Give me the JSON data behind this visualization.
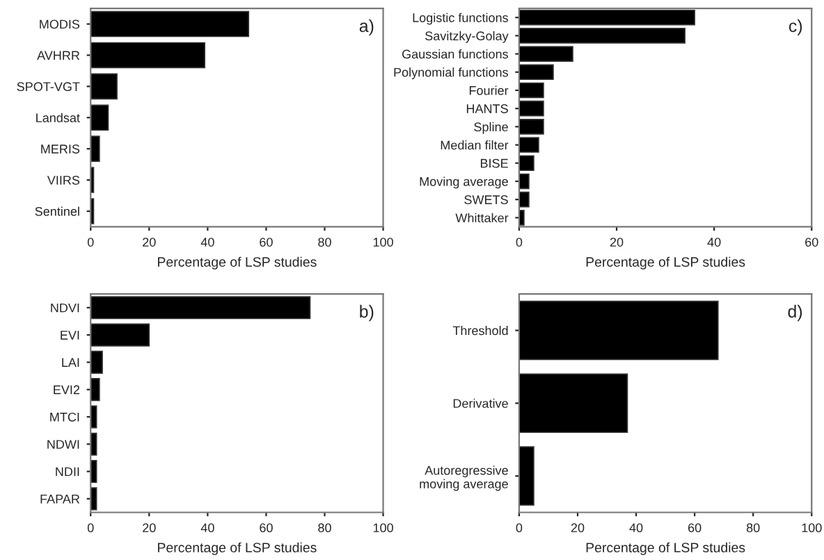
{
  "chart_data": [
    {
      "type": "bar",
      "orientation": "horizontal",
      "categories": [
        "MODIS",
        "AVHRR",
        "SPOT-VGT",
        "Landsat",
        "MERIS",
        "VIIRS",
        "Sentinel"
      ],
      "values": [
        54,
        39,
        9,
        6,
        3,
        1,
        1
      ],
      "color": "#000000",
      "xlabel": "Percentage of LSP studies",
      "xlim": [
        0,
        100
      ],
      "xticks": [
        0,
        20,
        40,
        60,
        80,
        100
      ],
      "annotations": [
        "a)"
      ],
      "grid": false,
      "legend": false
    },
    {
      "type": "bar",
      "orientation": "horizontal",
      "categories": [
        "Logistic functions",
        "Savitzky-Golay",
        "Gaussian functions",
        "Polynomial functions",
        "Fourier",
        "HANTS",
        "Spline",
        "Median filter",
        "BISE",
        "Moving average",
        "SWETS",
        "Whittaker"
      ],
      "values": [
        36,
        34,
        11,
        7,
        5,
        5,
        5,
        4,
        3,
        2,
        2,
        1
      ],
      "color": "#000000",
      "xlabel": "Percentage of LSP studies",
      "xlim": [
        0,
        60
      ],
      "xticks": [
        0,
        20,
        40,
        60
      ],
      "annotations": [
        "c)"
      ],
      "grid": false,
      "legend": false
    },
    {
      "type": "bar",
      "orientation": "horizontal",
      "categories": [
        "NDVI",
        "EVI",
        "LAI",
        "EVI2",
        "MTCI",
        "NDWI",
        "NDII",
        "FAPAR"
      ],
      "values": [
        75,
        20,
        4,
        3,
        2,
        2,
        2,
        2
      ],
      "color": "#000000",
      "xlabel": "Percentage of LSP studies",
      "xlim": [
        0,
        100
      ],
      "xticks": [
        0,
        20,
        40,
        60,
        80,
        100
      ],
      "annotations": [
        "b)"
      ],
      "grid": false,
      "legend": false
    },
    {
      "type": "bar",
      "orientation": "horizontal",
      "categories": [
        "Threshold",
        "Derivative",
        "Autoregressive\nmoving average"
      ],
      "values": [
        68,
        37,
        5
      ],
      "color": "#000000",
      "xlabel": "Percentage of LSP studies",
      "xlim": [
        0,
        100
      ],
      "xticks": [
        0,
        20,
        40,
        60,
        80,
        100
      ],
      "annotations": [
        "d)"
      ],
      "grid": false,
      "legend": false
    }
  ]
}
